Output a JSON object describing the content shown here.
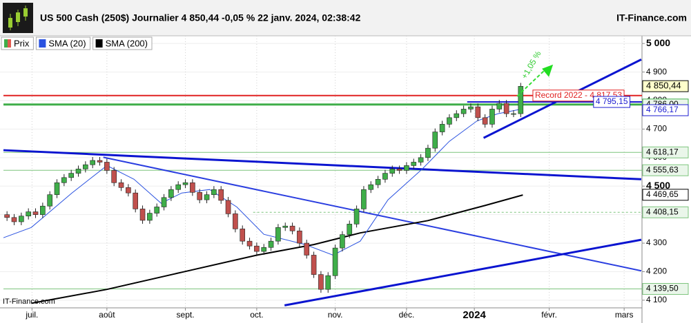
{
  "chart_data": {
    "type": "candlestick",
    "title": "US 500 Cash (250$) Journalier 4 850,44 -0,05 % 22 janv. 2024, 02:38:42",
    "brand": "IT-Finance.com",
    "watermark": "IT-Finance.com",
    "up_color": "#3fae49",
    "down_color": "#c0504d",
    "open": [
      4400,
      4390,
      4375,
      4395,
      4410,
      4400,
      4430,
      4470,
      4512,
      4530,
      4545,
      4560,
      4575,
      4590,
      4584,
      4555,
      4512,
      4495,
      4476,
      4420,
      4380,
      4405,
      4427,
      4460,
      4488,
      4505,
      4512,
      4478,
      4452,
      4470,
      4488,
      4450,
      4403,
      4350,
      4307,
      4290,
      4271,
      4285,
      4307,
      4355,
      4360,
      4343,
      4300,
      4258,
      4190,
      4138,
      4186,
      4283,
      4330,
      4367,
      4420,
      4488,
      4505,
      4524,
      4545,
      4560,
      4555,
      4572,
      4584,
      4600,
      4633,
      4690,
      4717,
      4740,
      4754,
      4770,
      4778,
      4740,
      4717,
      4770,
      4790,
      4754,
      4754
    ],
    "close": [
      4390,
      4375,
      4395,
      4410,
      4400,
      4430,
      4470,
      4512,
      4530,
      4545,
      4560,
      4575,
      4590,
      4584,
      4555,
      4512,
      4495,
      4476,
      4420,
      4380,
      4405,
      4427,
      4460,
      4488,
      4505,
      4512,
      4478,
      4452,
      4470,
      4488,
      4450,
      4403,
      4350,
      4307,
      4290,
      4271,
      4285,
      4307,
      4355,
      4360,
      4343,
      4300,
      4258,
      4190,
      4138,
      4186,
      4283,
      4330,
      4367,
      4420,
      4488,
      4505,
      4524,
      4545,
      4560,
      4555,
      4572,
      4584,
      4600,
      4633,
      4690,
      4717,
      4740,
      4754,
      4770,
      4778,
      4740,
      4717,
      4770,
      4790,
      4754,
      4754,
      4850
    ],
    "series": [
      {
        "name": "Prix",
        "color": "#e05a4f",
        "legend_color2": "#3fae49"
      },
      {
        "name": "SMA (20)",
        "color": "#2a52e0",
        "x": [
          -0.5,
          3.4,
          9.1,
          14,
          17.8,
          21.6,
          24.5,
          28.4,
          32.2,
          36,
          41.8,
          45.7,
          49.5,
          53.4,
          58.2,
          62,
          65.9,
          68.8,
          72.3
        ],
        "values": [
          4319,
          4355,
          4476,
          4572,
          4524,
          4440,
          4476,
          4488,
          4427,
          4331,
          4295,
          4258,
          4307,
          4452,
          4560,
          4657,
          4729,
          4754,
          4771
        ]
      },
      {
        "name": "SMA (200)",
        "color": "#000000",
        "x": [
          3.4,
          14,
          24.5,
          35,
          43,
          49.5,
          59,
          67,
          72.3
        ],
        "values": [
          4089,
          4138,
          4198,
          4258,
          4295,
          4336,
          4379,
          4432,
          4469
        ]
      }
    ],
    "trendlines": [
      {
        "x": [
          -0.5,
          88.9
        ],
        "y": [
          4626,
          4524
        ],
        "color": "#0a14d0",
        "width": 3
      },
      {
        "x": [
          13.5,
          88.9
        ],
        "y": [
          4601,
          4203
        ],
        "color": "#2a3ee0",
        "width": 2
      },
      {
        "x": [
          38.9,
          88.9
        ],
        "y": [
          4082,
          4312
        ],
        "color": "#0a14d0",
        "width": 3
      },
      {
        "x": [
          66.8,
          88.9
        ],
        "y": [
          4669,
          4944
        ],
        "color": "#0a14d0",
        "width": 3
      }
    ],
    "levels": [
      {
        "value": 4817.53,
        "label": "Record 2022 - 4 817,53",
        "color": "#e02020",
        "width": 2,
        "from": -0.5,
        "label_at": 74
      },
      {
        "value": 4786.0,
        "label": "4 786,00",
        "color": "#3fae49",
        "width": 3,
        "from": -0.5
      },
      {
        "value": 4795.15,
        "label": "4 795,15",
        "color": "#1a1ad0",
        "width": 2,
        "from": 64.5,
        "label_at": 82.5
      },
      {
        "value": 4618.17,
        "label": "4 618,17",
        "color": "#7cc47c",
        "width": 1,
        "from": -0.5
      },
      {
        "value": 4555.63,
        "label": "4 555,63",
        "color": "#7cc47c",
        "width": 1,
        "from": -0.5
      },
      {
        "value": 4408.15,
        "label": "4 408,15",
        "color": "#7cc47c",
        "width": 1,
        "from": 34.5,
        "dashed": true
      },
      {
        "value": 4139.5,
        "label": "4 139,50",
        "color": "#7cc47c",
        "width": 1,
        "from": -0.5
      }
    ],
    "price_labels": [
      {
        "value": 4850.44,
        "label": "4 850,44",
        "color": "#000000"
      },
      {
        "value": 4766.17,
        "label": "4 766,17",
        "color": "#1a1ad0"
      },
      {
        "value": 4469.65,
        "label": "4 469,65",
        "color": "#000000"
      }
    ],
    "annotation": "+1,05 %",
    "ylim": [
      4078,
      5027
    ],
    "yticks": [
      {
        "value": 4100,
        "label": "4 100"
      },
      {
        "value": 4200,
        "label": "4 200"
      },
      {
        "value": 4300,
        "label": "4 300"
      },
      {
        "value": 4400,
        "label": "4 400"
      },
      {
        "value": 4500,
        "label": "4 500"
      },
      {
        "value": 4600,
        "label": "4 600"
      },
      {
        "value": 4700,
        "label": "4 700"
      },
      {
        "value": 4800,
        "label": "4 800"
      },
      {
        "value": 4900,
        "label": "4 900"
      },
      {
        "value": 5000,
        "label": "5 000"
      }
    ],
    "bold_ticks": [
      4500,
      5000
    ],
    "xlim": [
      -0.5,
      89
    ],
    "xticks": [
      {
        "value": 3.5,
        "label": "juil."
      },
      {
        "value": 14,
        "label": "août"
      },
      {
        "value": 25,
        "label": "sept."
      },
      {
        "value": 35,
        "label": "oct."
      },
      {
        "value": 46,
        "label": "nov."
      },
      {
        "value": 56,
        "label": "déc."
      },
      {
        "value": 65.5,
        "label": "2024"
      },
      {
        "value": 76,
        "label": "févr."
      },
      {
        "value": 86.5,
        "label": "mars"
      }
    ],
    "bold_xticks": [
      "2024"
    ],
    "grid": true
  }
}
